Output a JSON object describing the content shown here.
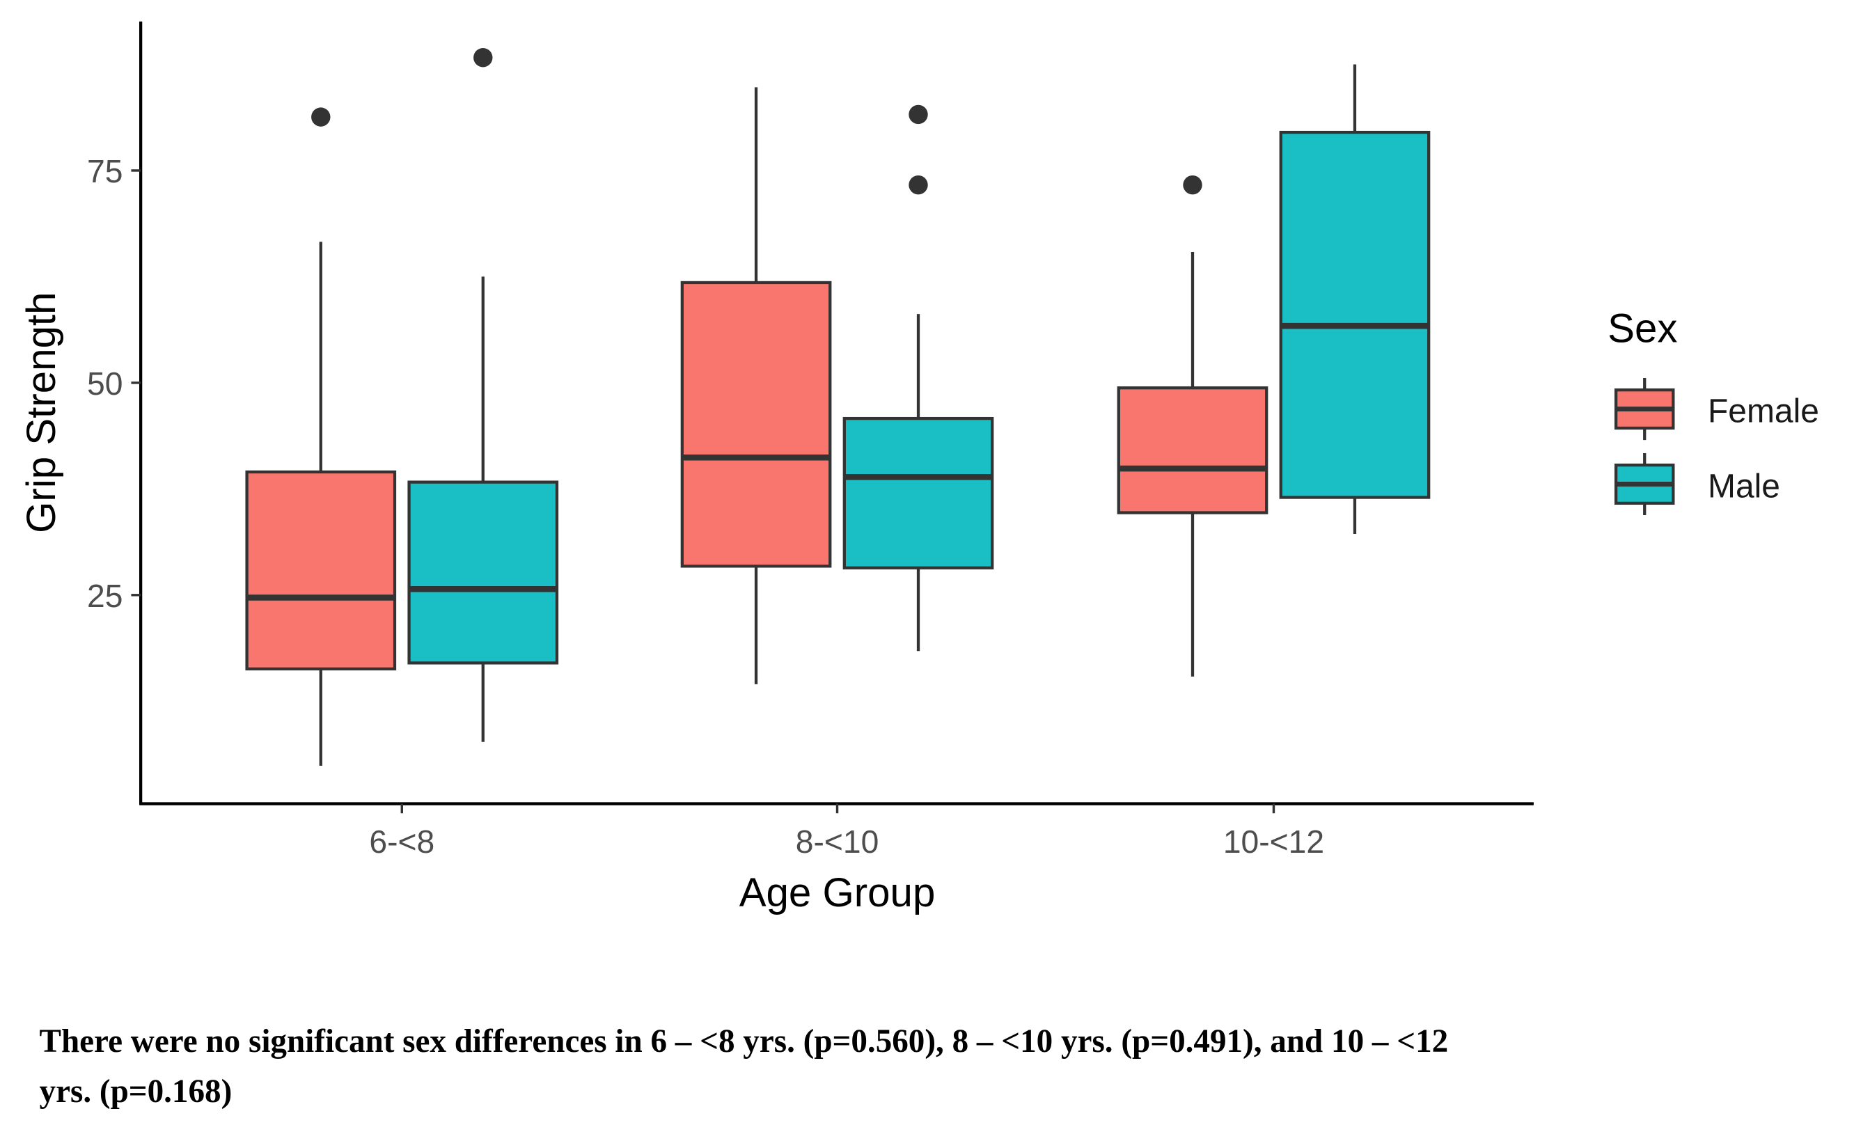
{
  "chart_data": {
    "type": "boxplot",
    "title": "",
    "xlabel": "Age Group",
    "ylabel": "Grip Strength",
    "categories": [
      "6-<8",
      "8-<10",
      "10-<12"
    ],
    "yticks": [
      25,
      50,
      75
    ],
    "ylim": [
      0,
      92
    ],
    "grid": false,
    "legend": {
      "title": "Sex",
      "placement": "right",
      "entries": [
        "Female",
        "Male"
      ]
    },
    "colors": {
      "Female": "#F8766D",
      "Male": "#19BFC4"
    },
    "series": [
      {
        "name": "Female",
        "boxes": [
          {
            "min": 4.9,
            "q1": 16.3,
            "median": 24.7,
            "q3": 39.5,
            "max": 66.6,
            "outliers": [
              81.3
            ]
          },
          {
            "min": 14.5,
            "q1": 28.4,
            "median": 41.2,
            "q3": 61.8,
            "max": 84.8,
            "outliers": []
          },
          {
            "min": 15.4,
            "q1": 34.7,
            "median": 39.9,
            "q3": 49.4,
            "max": 65.4,
            "outliers": [
              73.3
            ]
          }
        ]
      },
      {
        "name": "Male",
        "boxes": [
          {
            "min": 7.7,
            "q1": 17.0,
            "median": 25.7,
            "q3": 38.3,
            "max": 62.5,
            "outliers": [
              88.3
            ]
          },
          {
            "min": 18.4,
            "q1": 28.2,
            "median": 38.9,
            "q3": 45.8,
            "max": 58.1,
            "outliers": [
              73.3,
              81.6
            ]
          },
          {
            "min": 32.2,
            "q1": 36.5,
            "median": 56.7,
            "q3": 79.5,
            "max": 87.5,
            "outliers": []
          }
        ]
      }
    ]
  },
  "caption": {
    "line1": "There were no significant sex differences in 6 – <8 yrs. (p=0.560), 8 – <10 yrs. (p=0.491), and  10 – <12",
    "line2": "yrs. (p=0.168)"
  }
}
